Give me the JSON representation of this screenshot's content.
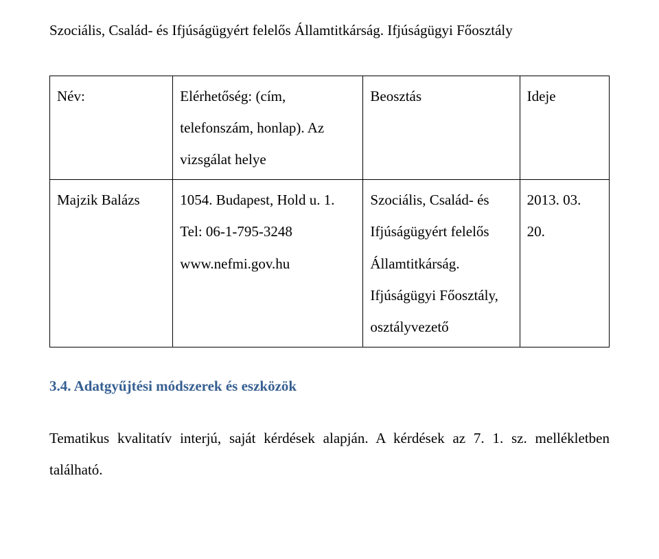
{
  "intro": "Szociális, Család- és Ifjúságügyért felelős Államtitkárság. Ifjúságügyi Főosztály",
  "table": {
    "header": {
      "name": "Név:",
      "reach": "Elérhetőség: (cím, telefonszám, honlap). Az vizsgálat helye",
      "position": "Beosztás",
      "time": "Ideje"
    },
    "row": {
      "name": "Majzik Balázs",
      "reach": "1054. Budapest, Hold u. 1. Tel: 06-1-795-3248 www.nefmi.gov.hu",
      "position": "Szociális, Család- és Ifjúságügyért felelős Államtitkárság. Ifjúságügyi Főosztály, osztályvezető",
      "time": "2013. 03. 20."
    }
  },
  "sectionHeading": "3.4. Adatgyűjtési módszerek és eszközök",
  "para": "Tematikus kvalitatív interjú, saját kérdések alapján. A kérdések az 7. 1. sz. mellékletben található."
}
